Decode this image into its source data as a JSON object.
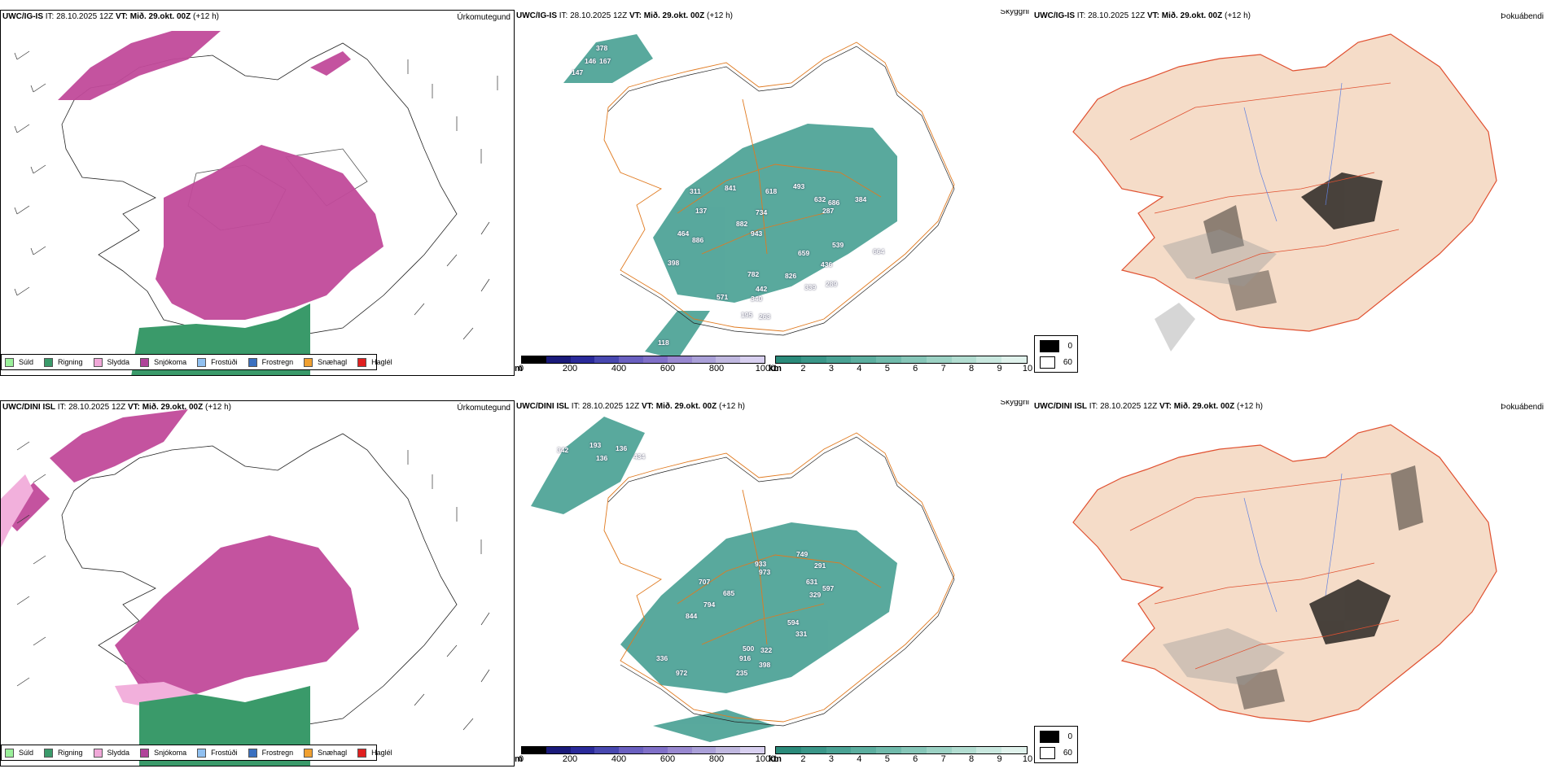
{
  "rows": [
    {
      "model": "UWC/IG-IS",
      "meta_label": "IT:",
      "meta_value": "28.10.2025 12Z",
      "vt_label": "VT:",
      "vt_value": "Mið. 29.okt. 00Z",
      "lead": "(+12 h)",
      "titles": [
        "Úrkomutegund",
        "Skyggni",
        "Þokuábendi"
      ],
      "visibility_numbers": [
        "378",
        "146",
        "167",
        "147",
        "311",
        "841",
        "618",
        "493",
        "632",
        "686",
        "287",
        "384",
        "137",
        "882",
        "734",
        "943",
        "464",
        "886",
        "398",
        "659",
        "539",
        "664",
        "782",
        "826",
        "436",
        "442",
        "339",
        "289",
        "571",
        "340",
        "195",
        "263",
        "118"
      ]
    },
    {
      "model": "UWC/DINI ISL",
      "meta_label": "IT:",
      "meta_value": "28.10.2025 12Z",
      "vt_label": "VT:",
      "vt_value": "Mið. 29.okt. 00Z",
      "lead": "(+12 h)",
      "titles": [
        "Úrkomutegund",
        "Skyggni",
        "Þokuábendi"
      ],
      "visibility_numbers": [
        "342",
        "193",
        "136",
        "136",
        "434",
        "933",
        "749",
        "291",
        "973",
        "707",
        "685",
        "631",
        "597",
        "329",
        "794",
        "844",
        "594",
        "331",
        "500",
        "322",
        "916",
        "398",
        "972",
        "235",
        "336"
      ]
    }
  ],
  "precip_legend": [
    {
      "label": "Súld",
      "color": "#9af09a"
    },
    {
      "label": "Rigning",
      "color": "#3a9a6a"
    },
    {
      "label": "Slydda",
      "color": "#f0a8d8"
    },
    {
      "label": "Snjókoma",
      "color": "#b0449a"
    },
    {
      "label": "Frostúði",
      "color": "#90c0f0"
    },
    {
      "label": "Frostregn",
      "color": "#3a70c0"
    },
    {
      "label": "Snæhagl",
      "color": "#f0a030"
    },
    {
      "label": "Haglél",
      "color": "#e02020"
    }
  ],
  "cbar_m": {
    "unit": "m",
    "ticks": [
      "0",
      "200",
      "400",
      "600",
      "800",
      "1000"
    ],
    "colors": [
      "#000000",
      "#1a1a7a",
      "#2a2a9a",
      "#4848b0",
      "#6a60c0",
      "#8070c8",
      "#9888d0",
      "#aaa0d8",
      "#c0b8e0",
      "#d8d0f0"
    ]
  },
  "cbar_km": {
    "unit": "km",
    "ticks": [
      "1",
      "2",
      "3",
      "4",
      "5",
      "6",
      "7",
      "8",
      "9",
      "10"
    ],
    "colors": [
      "#2a8a7a",
      "#3a9688",
      "#4aa294",
      "#5cae9f",
      "#70baab",
      "#86c6b8",
      "#9cd2c4",
      "#b2ddd1",
      "#c9e8df",
      "#e0f2ec"
    ]
  },
  "fog_legend": [
    {
      "label": "0",
      "color": "#000000"
    },
    {
      "label": "60",
      "color": "#ffffff"
    }
  ]
}
